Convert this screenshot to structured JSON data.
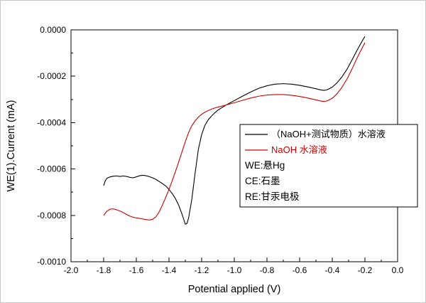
{
  "figure": {
    "background": "#ffffff",
    "border_color": "#c9c9c9"
  },
  "chart_data": {
    "type": "line",
    "title": "",
    "xlabel": "Potential applied (V)",
    "ylabel": "WE(1).Current (mA)",
    "xlim": [
      -2.0,
      0.0
    ],
    "ylim": [
      -0.001,
      0.0
    ],
    "grid": false,
    "axis_color": "#000000",
    "x_minor_step": 0.1,
    "y_minor_step": 0.0001,
    "x_ticks": [
      {
        "v": -2.0,
        "label": "-2.0"
      },
      {
        "v": -1.8,
        "label": "-1.8"
      },
      {
        "v": -1.6,
        "label": "-1.6"
      },
      {
        "v": -1.4,
        "label": "-1.4"
      },
      {
        "v": -1.2,
        "label": "-1.2"
      },
      {
        "v": -1.0,
        "label": "-1.0"
      },
      {
        "v": -0.8,
        "label": "-0.8"
      },
      {
        "v": -0.6,
        "label": "-0.6"
      },
      {
        "v": -0.4,
        "label": "-0.4"
      },
      {
        "v": -0.2,
        "label": "-0.2"
      },
      {
        "v": 0.0,
        "label": "0.0"
      }
    ],
    "y_ticks": [
      {
        "v": -0.001,
        "label": "-0.0010"
      },
      {
        "v": -0.0008,
        "label": "-0.0008"
      },
      {
        "v": -0.0006,
        "label": "-0.0006"
      },
      {
        "v": -0.0004,
        "label": "-0.0004"
      },
      {
        "v": -0.0002,
        "label": "-0.0002"
      },
      {
        "v": 0.0,
        "label": "0.0000"
      }
    ],
    "series": [
      {
        "name": "（NaOH+测试物质）水溶液",
        "color": "#000000",
        "points": [
          [
            -1.8,
            -0.000672
          ],
          [
            -1.79,
            -0.00065
          ],
          [
            -1.78,
            -0.00064
          ],
          [
            -1.76,
            -0.000634
          ],
          [
            -1.74,
            -0.000631
          ],
          [
            -1.72,
            -0.00063
          ],
          [
            -1.7,
            -0.000632
          ],
          [
            -1.68,
            -0.00063
          ],
          [
            -1.66,
            -0.000632
          ],
          [
            -1.64,
            -0.000636
          ],
          [
            -1.62,
            -0.000638
          ],
          [
            -1.6,
            -0.000634
          ],
          [
            -1.58,
            -0.000629
          ],
          [
            -1.56,
            -0.000627
          ],
          [
            -1.54,
            -0.000629
          ],
          [
            -1.52,
            -0.000633
          ],
          [
            -1.5,
            -0.000638
          ],
          [
            -1.48,
            -0.000645
          ],
          [
            -1.46,
            -0.000654
          ],
          [
            -1.44,
            -0.000663
          ],
          [
            -1.42,
            -0.000673
          ],
          [
            -1.4,
            -0.000688
          ],
          [
            -1.38,
            -0.000706
          ],
          [
            -1.36,
            -0.000728
          ],
          [
            -1.34,
            -0.000757
          ],
          [
            -1.32,
            -0.000795
          ],
          [
            -1.3,
            -0.000838
          ],
          [
            -1.29,
            -0.000835
          ],
          [
            -1.28,
            -0.000812
          ],
          [
            -1.26,
            -0.00073
          ],
          [
            -1.24,
            -0.000618
          ],
          [
            -1.22,
            -0.000515
          ],
          [
            -1.2,
            -0.000452
          ],
          [
            -1.18,
            -0.000412
          ],
          [
            -1.16,
            -0.000388
          ],
          [
            -1.14,
            -0.000372
          ],
          [
            -1.12,
            -0.000358
          ],
          [
            -1.1,
            -0.000346
          ],
          [
            -1.05,
            -0.000324
          ],
          [
            -1.0,
            -0.000305
          ],
          [
            -0.95,
            -0.000286
          ],
          [
            -0.9,
            -0.000268
          ],
          [
            -0.85,
            -0.000252
          ],
          [
            -0.8,
            -0.000241
          ],
          [
            -0.75,
            -0.000234
          ],
          [
            -0.7,
            -0.000232
          ],
          [
            -0.65,
            -0.000234
          ],
          [
            -0.6,
            -0.000239
          ],
          [
            -0.55,
            -0.000246
          ],
          [
            -0.5,
            -0.000254
          ],
          [
            -0.47,
            -0.000259
          ],
          [
            -0.45,
            -0.000261
          ],
          [
            -0.43,
            -0.000258
          ],
          [
            -0.4,
            -0.000247
          ],
          [
            -0.37,
            -0.000228
          ],
          [
            -0.34,
            -0.000202
          ],
          [
            -0.31,
            -0.00017
          ],
          [
            -0.28,
            -0.000131
          ],
          [
            -0.25,
            -9e-05
          ],
          [
            -0.22,
            -5.2e-05
          ],
          [
            -0.2,
            -2.8e-05
          ]
        ]
      },
      {
        "name": "NaOH 水溶液",
        "color": "#cc0000",
        "points": [
          [
            -1.8,
            -0.0008
          ],
          [
            -1.78,
            -0.000782
          ],
          [
            -1.76,
            -0.000773
          ],
          [
            -1.74,
            -0.000772
          ],
          [
            -1.72,
            -0.000776
          ],
          [
            -1.7,
            -0.000781
          ],
          [
            -1.68,
            -0.000788
          ],
          [
            -1.66,
            -0.000796
          ],
          [
            -1.64,
            -0.000803
          ],
          [
            -1.62,
            -0.000808
          ],
          [
            -1.6,
            -0.000811
          ],
          [
            -1.58,
            -0.000813
          ],
          [
            -1.56,
            -0.000816
          ],
          [
            -1.54,
            -0.000818
          ],
          [
            -1.52,
            -0.00082
          ],
          [
            -1.5,
            -0.000817
          ],
          [
            -1.48,
            -0.000806
          ],
          [
            -1.46,
            -0.000785
          ],
          [
            -1.44,
            -0.000755
          ],
          [
            -1.42,
            -0.000722
          ],
          [
            -1.4,
            -0.000688
          ],
          [
            -1.38,
            -0.00065
          ],
          [
            -1.36,
            -0.00061
          ],
          [
            -1.34,
            -0.000568
          ],
          [
            -1.32,
            -0.000525
          ],
          [
            -1.3,
            -0.000482
          ],
          [
            -1.28,
            -0.000443
          ],
          [
            -1.26,
            -0.000413
          ],
          [
            -1.24,
            -0.000392
          ],
          [
            -1.22,
            -0.000376
          ],
          [
            -1.2,
            -0.000364
          ],
          [
            -1.18,
            -0.000355
          ],
          [
            -1.16,
            -0.000348
          ],
          [
            -1.14,
            -0.000342
          ],
          [
            -1.12,
            -0.000337
          ],
          [
            -1.1,
            -0.000333
          ],
          [
            -1.05,
            -0.000324
          ],
          [
            -1.0,
            -0.000314
          ],
          [
            -0.95,
            -0.000304
          ],
          [
            -0.9,
            -0.000294
          ],
          [
            -0.85,
            -0.000286
          ],
          [
            -0.8,
            -0.000281
          ],
          [
            -0.75,
            -0.000279
          ],
          [
            -0.7,
            -0.000279
          ],
          [
            -0.65,
            -0.000282
          ],
          [
            -0.6,
            -0.000287
          ],
          [
            -0.55,
            -0.000294
          ],
          [
            -0.5,
            -0.000302
          ],
          [
            -0.47,
            -0.000307
          ],
          [
            -0.45,
            -0.000309
          ],
          [
            -0.43,
            -0.000306
          ],
          [
            -0.4,
            -0.000295
          ],
          [
            -0.37,
            -0.000275
          ],
          [
            -0.34,
            -0.000247
          ],
          [
            -0.31,
            -0.000212
          ],
          [
            -0.28,
            -0.00017
          ],
          [
            -0.25,
            -0.000124
          ],
          [
            -0.22,
            -8.2e-05
          ],
          [
            -0.2,
            -5.5e-05
          ]
        ]
      }
    ],
    "legend": {
      "position": "center-right",
      "entries": [
        {
          "label": "（NaOH+测试物质）水溶液",
          "color": "#000000"
        },
        {
          "label": "NaOH 水溶液",
          "color": "#cc0000"
        }
      ],
      "notes": [
        "WE:悬Hg",
        "CE:石墨",
        "RE:甘汞电极"
      ]
    }
  }
}
